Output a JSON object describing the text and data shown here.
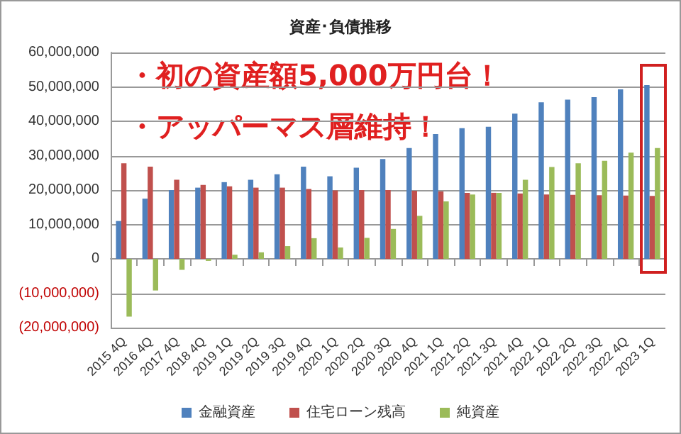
{
  "chart_data": {
    "type": "bar",
    "title": "資産･負債推移",
    "categories": [
      "2015 4Q",
      "2016 4Q",
      "2017 4Q",
      "2018 4Q",
      "2019 1Q",
      "2019 2Q",
      "2019 3Q",
      "2019 4Q",
      "2020 1Q",
      "2020 2Q",
      "2020 3Q",
      "2020 4Q",
      "2021 1Q",
      "2021 2Q",
      "2021 3Q",
      "2021 4Q",
      "2022 1Q",
      "2022 2Q",
      "2022 3Q",
      "2022 4Q",
      "2023 1Q"
    ],
    "series": [
      {
        "name": "金融資産",
        "color": "#4f81bd",
        "values": [
          11000000,
          17500000,
          20000000,
          20700000,
          22300000,
          23000000,
          24600000,
          26800000,
          24000000,
          26500000,
          29000000,
          32200000,
          36300000,
          38000000,
          38400000,
          42200000,
          45500000,
          46300000,
          47000000,
          49300000,
          50500000
        ]
      },
      {
        "name": "住宅ローン残高",
        "color": "#c0504d",
        "values": [
          27800000,
          26800000,
          23000000,
          21500000,
          21100000,
          20700000,
          20700000,
          20300000,
          19900000,
          20000000,
          20000000,
          19800000,
          19600000,
          19200000,
          19200000,
          19000000,
          18700000,
          18600000,
          18500000,
          18400000,
          18300000
        ]
      },
      {
        "name": "純資産",
        "color": "#9bbb59",
        "values": [
          -16800000,
          -9200000,
          -3200000,
          -600000,
          1200000,
          1900000,
          3700000,
          6000000,
          3300000,
          6100000,
          8700000,
          12500000,
          16700000,
          18700000,
          19200000,
          23000000,
          26700000,
          27800000,
          28500000,
          30900000,
          32200000
        ]
      }
    ],
    "ylim": [
      -20000000,
      60000000
    ],
    "yticks": [
      {
        "value": -20000000,
        "label": "(20,000,000)"
      },
      {
        "value": -10000000,
        "label": "(10,000,000)"
      },
      {
        "value": 0,
        "label": "0"
      },
      {
        "value": 10000000,
        "label": "10,000,000"
      },
      {
        "value": 20000000,
        "label": "20,000,000"
      },
      {
        "value": 30000000,
        "label": "30,000,000"
      },
      {
        "value": 40000000,
        "label": "40,000,000"
      },
      {
        "value": 50000000,
        "label": "50,000,000"
      },
      {
        "value": 60000000,
        "label": "60,000,000"
      }
    ],
    "annotations": [
      "・初の資産額5,000万円台！",
      "・アッパーマス層維持！"
    ],
    "grid": "y",
    "legend": "bottom"
  }
}
